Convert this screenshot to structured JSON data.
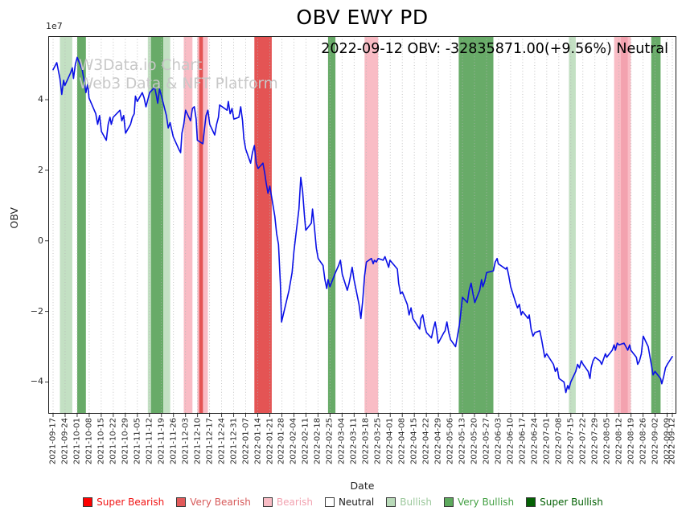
{
  "title": "OBV EWY PD",
  "annotation": "2022-09-12 OBV: -32835871.00(+9.56%) Neutral",
  "watermark": {
    "line1": "W3Data.io Chart",
    "line2": "Web3 Data & NFT Platform"
  },
  "axes": {
    "xlabel": "Date",
    "ylabel": "OBV",
    "y_offset_label": "1e7"
  },
  "legend": {
    "items": [
      {
        "label": "Super Bearish",
        "color": "#fe0000",
        "text_color": "#f01414"
      },
      {
        "label": "Very Bearish",
        "color": "#e25a5a",
        "text_color": "#d75b5b"
      },
      {
        "label": "Bearish",
        "color": "#f9bcc5",
        "text_color": "#f2a3b1"
      },
      {
        "label": "Neutral",
        "color": "#ffffff",
        "text_color": "#1a1a1a"
      },
      {
        "label": "Bullish",
        "color": "#b9dab9",
        "text_color": "#9cc89c"
      },
      {
        "label": "Very Bullish",
        "color": "#5da95d",
        "text_color": "#44a044"
      },
      {
        "label": "Super Bullish",
        "color": "#046104",
        "text_color": "#046104"
      }
    ]
  },
  "chart_data": {
    "type": "line",
    "title": "OBV EWY PD",
    "xlabel": "Date",
    "ylabel": "OBV",
    "values_unit": "1e7",
    "ylim": [
      -4.9,
      5.8
    ],
    "grid": "vertical-dotted",
    "x_span_days": 360,
    "x_tick_step_days": 7,
    "y_ticks": [
      {
        "value": 4,
        "label": "4"
      },
      {
        "value": 2,
        "label": "2"
      },
      {
        "value": 0,
        "label": "0"
      },
      {
        "value": -2,
        "label": "−2"
      },
      {
        "value": -4,
        "label": "−4"
      }
    ],
    "x_tick_labels": [
      "2021-09-17",
      "2021-09-24",
      "2021-10-01",
      "2021-10-08",
      "2021-10-15",
      "2021-10-22",
      "2021-10-29",
      "2021-11-05",
      "2021-11-12",
      "2021-11-19",
      "2021-11-26",
      "2021-12-03",
      "2021-12-10",
      "2021-12-17",
      "2021-12-24",
      "2021-12-31",
      "2022-01-07",
      "2022-01-14",
      "2022-01-21",
      "2022-01-28",
      "2022-02-04",
      "2022-02-11",
      "2022-02-18",
      "2022-02-25",
      "2022-03-04",
      "2022-03-11",
      "2022-03-18",
      "2022-03-25",
      "2022-04-01",
      "2022-04-08",
      "2022-04-15",
      "2022-04-22",
      "2022-04-29",
      "2022-05-06",
      "2022-05-13",
      "2022-05-20",
      "2022-05-27",
      "2022-06-03",
      "2022-06-10",
      "2022-06-17",
      "2022-06-24",
      "2022-07-01",
      "2022-07-08",
      "2022-07-15",
      "2022-07-22",
      "2022-07-29",
      "2022-08-05",
      "2022-08-12",
      "2022-08-19",
      "2022-08-26",
      "2022-09-02",
      "2022-09-09",
      "2022-09-12"
    ],
    "band_colors": {
      "super_bearish": "#fe0000",
      "very_bearish": "#e45454",
      "bearish": "#f9bcc5",
      "bearish_dark": "#f3a2af",
      "neutral": "#ffffff",
      "bullish": "#c3e0c3",
      "very_bullish": "#68ab68",
      "super_bullish": "#046104"
    },
    "bands": [
      {
        "from": 0.011,
        "to": 0.031,
        "level": "bullish"
      },
      {
        "from": 0.039,
        "to": 0.053,
        "level": "very_bullish"
      },
      {
        "from": 0.153,
        "to": 0.158,
        "level": "bullish"
      },
      {
        "from": 0.158,
        "to": 0.178,
        "level": "very_bullish"
      },
      {
        "from": 0.178,
        "to": 0.189,
        "level": "bullish"
      },
      {
        "from": 0.211,
        "to": 0.225,
        "level": "bearish"
      },
      {
        "from": 0.233,
        "to": 0.25,
        "level": "bearish"
      },
      {
        "from": 0.236,
        "to": 0.242,
        "level": "very_bearish"
      },
      {
        "from": 0.325,
        "to": 0.353,
        "level": "very_bearish"
      },
      {
        "from": 0.444,
        "to": 0.456,
        "level": "very_bullish"
      },
      {
        "from": 0.503,
        "to": 0.525,
        "level": "bearish"
      },
      {
        "from": 0.655,
        "to": 0.711,
        "level": "very_bullish"
      },
      {
        "from": 0.833,
        "to": 0.844,
        "level": "bullish"
      },
      {
        "from": 0.906,
        "to": 0.933,
        "level": "bearish"
      },
      {
        "from": 0.917,
        "to": 0.928,
        "level": "bearish_dark"
      },
      {
        "from": 0.966,
        "to": 0.981,
        "level": "very_bullish"
      }
    ],
    "last_point": {
      "date": "2022-09-12",
      "obv": -32835871.0,
      "change_pct": "+9.56%",
      "signal": "Neutral"
    },
    "series": [
      {
        "name": "OBV",
        "color": "#0a10e6",
        "points": [
          [
            0.0,
            4.85
          ],
          [
            0.006,
            5.05
          ],
          [
            0.011,
            4.6
          ],
          [
            0.014,
            4.15
          ],
          [
            0.017,
            4.55
          ],
          [
            0.019,
            4.4
          ],
          [
            0.028,
            4.75
          ],
          [
            0.031,
            4.9
          ],
          [
            0.033,
            4.6
          ],
          [
            0.036,
            5.0
          ],
          [
            0.039,
            5.2
          ],
          [
            0.047,
            4.85
          ],
          [
            0.05,
            4.55
          ],
          [
            0.053,
            4.2
          ],
          [
            0.056,
            4.45
          ],
          [
            0.058,
            4.05
          ],
          [
            0.069,
            3.6
          ],
          [
            0.072,
            3.3
          ],
          [
            0.075,
            3.55
          ],
          [
            0.078,
            3.1
          ],
          [
            0.086,
            2.85
          ],
          [
            0.089,
            3.3
          ],
          [
            0.092,
            3.5
          ],
          [
            0.094,
            3.3
          ],
          [
            0.097,
            3.5
          ],
          [
            0.108,
            3.7
          ],
          [
            0.111,
            3.4
          ],
          [
            0.114,
            3.55
          ],
          [
            0.117,
            3.05
          ],
          [
            0.125,
            3.3
          ],
          [
            0.128,
            3.5
          ],
          [
            0.131,
            3.6
          ],
          [
            0.133,
            4.1
          ],
          [
            0.136,
            3.95
          ],
          [
            0.144,
            4.2
          ],
          [
            0.147,
            4.05
          ],
          [
            0.15,
            3.8
          ],
          [
            0.153,
            4.0
          ],
          [
            0.156,
            4.2
          ],
          [
            0.164,
            4.35
          ],
          [
            0.167,
            4.1
          ],
          [
            0.169,
            3.9
          ],
          [
            0.172,
            4.3
          ],
          [
            0.175,
            4.1
          ],
          [
            0.183,
            3.55
          ],
          [
            0.186,
            3.2
          ],
          [
            0.189,
            3.35
          ],
          [
            0.194,
            2.95
          ],
          [
            0.203,
            2.6
          ],
          [
            0.206,
            2.5
          ],
          [
            0.208,
            3.05
          ],
          [
            0.211,
            3.3
          ],
          [
            0.214,
            3.7
          ],
          [
            0.222,
            3.4
          ],
          [
            0.225,
            3.75
          ],
          [
            0.228,
            3.8
          ],
          [
            0.231,
            3.45
          ],
          [
            0.233,
            2.85
          ],
          [
            0.242,
            2.75
          ],
          [
            0.244,
            3.1
          ],
          [
            0.247,
            3.55
          ],
          [
            0.25,
            3.7
          ],
          [
            0.253,
            3.3
          ],
          [
            0.261,
            3.0
          ],
          [
            0.264,
            3.3
          ],
          [
            0.267,
            3.5
          ],
          [
            0.269,
            3.85
          ],
          [
            0.281,
            3.7
          ],
          [
            0.283,
            3.95
          ],
          [
            0.286,
            3.6
          ],
          [
            0.289,
            3.75
          ],
          [
            0.292,
            3.45
          ],
          [
            0.3,
            3.5
          ],
          [
            0.303,
            3.8
          ],
          [
            0.306,
            3.4
          ],
          [
            0.308,
            2.9
          ],
          [
            0.311,
            2.6
          ],
          [
            0.319,
            2.2
          ],
          [
            0.322,
            2.5
          ],
          [
            0.325,
            2.7
          ],
          [
            0.328,
            2.2
          ],
          [
            0.331,
            2.05
          ],
          [
            0.339,
            2.2
          ],
          [
            0.342,
            1.9
          ],
          [
            0.344,
            1.65
          ],
          [
            0.347,
            1.35
          ],
          [
            0.35,
            1.55
          ],
          [
            0.358,
            0.7
          ],
          [
            0.361,
            0.2
          ],
          [
            0.364,
            -0.1
          ],
          [
            0.367,
            -1.2
          ],
          [
            0.369,
            -2.3
          ],
          [
            0.381,
            -1.4
          ],
          [
            0.386,
            -0.9
          ],
          [
            0.389,
            -0.3
          ],
          [
            0.397,
            0.9
          ],
          [
            0.4,
            1.8
          ],
          [
            0.403,
            1.4
          ],
          [
            0.406,
            0.7
          ],
          [
            0.408,
            0.3
          ],
          [
            0.417,
            0.5
          ],
          [
            0.419,
            0.9
          ],
          [
            0.422,
            0.4
          ],
          [
            0.425,
            -0.2
          ],
          [
            0.428,
            -0.5
          ],
          [
            0.436,
            -0.7
          ],
          [
            0.439,
            -1.1
          ],
          [
            0.442,
            -1.35
          ],
          [
            0.444,
            -1.1
          ],
          [
            0.447,
            -1.3
          ],
          [
            0.456,
            -0.9
          ],
          [
            0.461,
            -0.7
          ],
          [
            0.464,
            -0.55
          ],
          [
            0.467,
            -0.95
          ],
          [
            0.475,
            -1.4
          ],
          [
            0.478,
            -1.2
          ],
          [
            0.483,
            -0.75
          ],
          [
            0.486,
            -1.1
          ],
          [
            0.494,
            -1.8
          ],
          [
            0.497,
            -2.2
          ],
          [
            0.5,
            -1.7
          ],
          [
            0.503,
            -1.0
          ],
          [
            0.506,
            -0.6
          ],
          [
            0.514,
            -0.5
          ],
          [
            0.517,
            -0.65
          ],
          [
            0.519,
            -0.55
          ],
          [
            0.522,
            -0.6
          ],
          [
            0.525,
            -0.5
          ],
          [
            0.533,
            -0.55
          ],
          [
            0.536,
            -0.45
          ],
          [
            0.539,
            -0.6
          ],
          [
            0.542,
            -0.75
          ],
          [
            0.544,
            -0.55
          ],
          [
            0.556,
            -0.8
          ],
          [
            0.558,
            -1.2
          ],
          [
            0.561,
            -1.5
          ],
          [
            0.564,
            -1.45
          ],
          [
            0.572,
            -1.8
          ],
          [
            0.575,
            -2.1
          ],
          [
            0.578,
            -1.9
          ],
          [
            0.581,
            -2.2
          ],
          [
            0.592,
            -2.5
          ],
          [
            0.594,
            -2.2
          ],
          [
            0.597,
            -2.1
          ],
          [
            0.6,
            -2.4
          ],
          [
            0.603,
            -2.6
          ],
          [
            0.611,
            -2.75
          ],
          [
            0.614,
            -2.5
          ],
          [
            0.617,
            -2.3
          ],
          [
            0.619,
            -2.5
          ],
          [
            0.622,
            -2.9
          ],
          [
            0.631,
            -2.6
          ],
          [
            0.633,
            -2.55
          ],
          [
            0.636,
            -2.3
          ],
          [
            0.639,
            -2.6
          ],
          [
            0.642,
            -2.8
          ],
          [
            0.65,
            -3.0
          ],
          [
            0.653,
            -2.7
          ],
          [
            0.656,
            -2.4
          ],
          [
            0.658,
            -2.1
          ],
          [
            0.661,
            -1.6
          ],
          [
            0.669,
            -1.75
          ],
          [
            0.672,
            -1.4
          ],
          [
            0.675,
            -1.2
          ],
          [
            0.678,
            -1.5
          ],
          [
            0.681,
            -1.75
          ],
          [
            0.689,
            -1.4
          ],
          [
            0.692,
            -1.1
          ],
          [
            0.694,
            -1.3
          ],
          [
            0.697,
            -1.15
          ],
          [
            0.7,
            -0.9
          ],
          [
            0.711,
            -0.85
          ],
          [
            0.714,
            -0.6
          ],
          [
            0.717,
            -0.5
          ],
          [
            0.719,
            -0.65
          ],
          [
            0.731,
            -0.8
          ],
          [
            0.733,
            -0.75
          ],
          [
            0.736,
            -1.0
          ],
          [
            0.739,
            -1.3
          ],
          [
            0.747,
            -1.75
          ],
          [
            0.75,
            -1.9
          ],
          [
            0.753,
            -1.8
          ],
          [
            0.756,
            -2.1
          ],
          [
            0.758,
            -2.0
          ],
          [
            0.767,
            -2.2
          ],
          [
            0.769,
            -2.1
          ],
          [
            0.772,
            -2.5
          ],
          [
            0.775,
            -2.7
          ],
          [
            0.778,
            -2.6
          ],
          [
            0.786,
            -2.55
          ],
          [
            0.789,
            -2.8
          ],
          [
            0.792,
            -3.1
          ],
          [
            0.794,
            -3.3
          ],
          [
            0.797,
            -3.2
          ],
          [
            0.808,
            -3.5
          ],
          [
            0.811,
            -3.7
          ],
          [
            0.814,
            -3.6
          ],
          [
            0.817,
            -3.9
          ],
          [
            0.825,
            -4.0
          ],
          [
            0.828,
            -4.3
          ],
          [
            0.831,
            -4.1
          ],
          [
            0.833,
            -4.2
          ],
          [
            0.836,
            -4.0
          ],
          [
            0.844,
            -3.7
          ],
          [
            0.847,
            -3.5
          ],
          [
            0.85,
            -3.6
          ],
          [
            0.853,
            -3.4
          ],
          [
            0.856,
            -3.5
          ],
          [
            0.864,
            -3.7
          ],
          [
            0.867,
            -3.9
          ],
          [
            0.869,
            -3.6
          ],
          [
            0.872,
            -3.4
          ],
          [
            0.875,
            -3.3
          ],
          [
            0.883,
            -3.4
          ],
          [
            0.886,
            -3.5
          ],
          [
            0.889,
            -3.35
          ],
          [
            0.892,
            -3.2
          ],
          [
            0.894,
            -3.3
          ],
          [
            0.903,
            -3.1
          ],
          [
            0.906,
            -2.95
          ],
          [
            0.908,
            -3.1
          ],
          [
            0.911,
            -2.9
          ],
          [
            0.914,
            -2.95
          ],
          [
            0.922,
            -2.9
          ],
          [
            0.925,
            -3.0
          ],
          [
            0.928,
            -3.1
          ],
          [
            0.931,
            -2.95
          ],
          [
            0.933,
            -3.1
          ],
          [
            0.942,
            -3.3
          ],
          [
            0.944,
            -3.5
          ],
          [
            0.947,
            -3.4
          ],
          [
            0.95,
            -3.2
          ],
          [
            0.953,
            -2.7
          ],
          [
            0.961,
            -3.0
          ],
          [
            0.964,
            -3.3
          ],
          [
            0.967,
            -3.6
          ],
          [
            0.969,
            -3.8
          ],
          [
            0.972,
            -3.7
          ],
          [
            0.981,
            -3.9
          ],
          [
            0.983,
            -4.05
          ],
          [
            0.986,
            -3.85
          ],
          [
            0.989,
            -3.6
          ],
          [
            0.992,
            -3.5
          ],
          [
            1.0,
            -3.28
          ]
        ]
      }
    ]
  }
}
